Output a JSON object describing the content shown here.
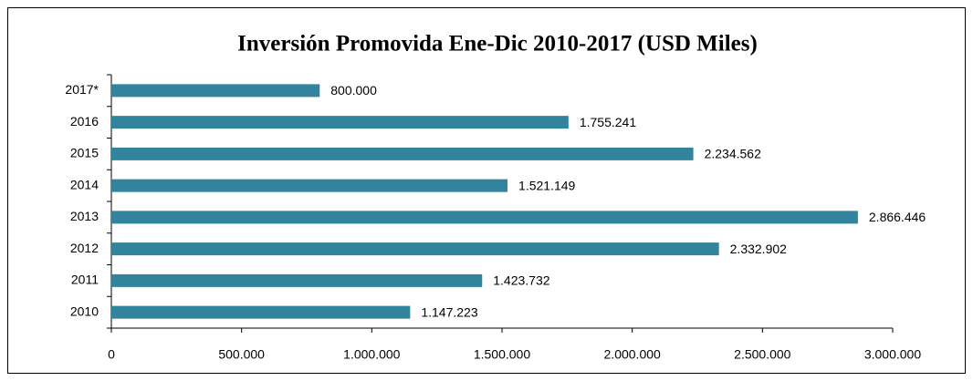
{
  "chart_data": {
    "type": "bar",
    "orientation": "horizontal",
    "title": "Inversión Promovida Ene-Dic 2010-2017 (USD Miles)",
    "categories": [
      "2017*",
      "2016",
      "2015",
      "2014",
      "2013",
      "2012",
      "2011",
      "2010"
    ],
    "values": [
      800000,
      1755241,
      2234562,
      1521149,
      2866446,
      2332902,
      1423732,
      1147223
    ],
    "value_labels": [
      "800.000",
      "1.755.241",
      "2.234.562",
      "1.521.149",
      "2.866.446",
      "2.332.902",
      "1.423.732",
      "1.147.223"
    ],
    "color": "#31849b",
    "xlim": [
      0,
      3000000
    ],
    "xticks": [
      0,
      {
        "value": 500000,
        "label": "500.000"
      },
      {
        "value": 1000000,
        "label": "1.000.000"
      },
      {
        "value": 1500000,
        "label": "1.500.000"
      },
      {
        "value": 2000000,
        "label": "2.000.000"
      },
      {
        "value": 2500000,
        "label": "2.500.000"
      },
      {
        "value": 3000000,
        "label": "3.000.000"
      }
    ],
    "grid": false
  }
}
